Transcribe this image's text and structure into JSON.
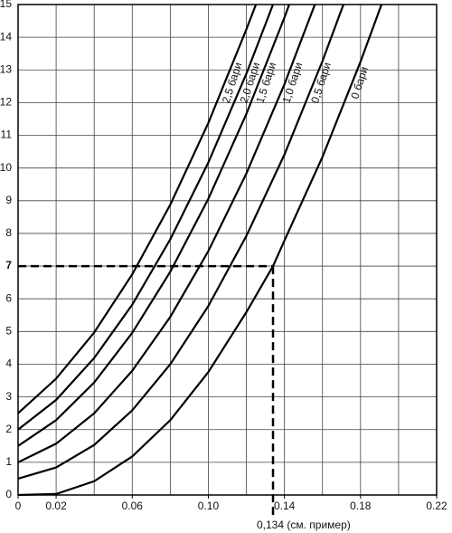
{
  "chart_data": {
    "type": "line",
    "xlim": [
      0,
      0.22
    ],
    "ylim": [
      0,
      15
    ],
    "xticks": [
      0,
      0.02,
      0.06,
      {
        "value": 0.1,
        "label": "0.10"
      },
      0.14,
      0.18,
      0.22
    ],
    "xgrid": [
      0.04,
      0.08,
      0.12,
      0.16,
      0.2
    ],
    "yticks": [
      0,
      1,
      2,
      3,
      4,
      5,
      6,
      7,
      8,
      9,
      10,
      11,
      12,
      13,
      14,
      15
    ],
    "grid": true,
    "series": [
      {
        "name": "2,5 бари",
        "color": "#000000",
        "x": [
          0,
          0.02,
          0.04,
          0.06,
          0.08,
          0.1,
          0.12,
          0.125
        ],
        "values": [
          2.5,
          3.56,
          4.97,
          6.75,
          8.88,
          11.38,
          14.24,
          15
        ]
      },
      {
        "name": "2,0 бари",
        "color": "#000000",
        "x": [
          0,
          0.02,
          0.04,
          0.06,
          0.08,
          0.1,
          0.12,
          0.134
        ],
        "values": [
          2,
          2.91,
          4.19,
          5.82,
          7.82,
          10.17,
          12.88,
          15
        ]
      },
      {
        "name": "1,5 бари",
        "color": "#000000",
        "x": [
          0,
          0.02,
          0.04,
          0.06,
          0.08,
          0.1,
          0.12,
          0.14,
          0.1425
        ],
        "values": [
          1.5,
          2.29,
          3.44,
          4.96,
          6.83,
          9.06,
          11.65,
          14.6,
          15
        ]
      },
      {
        "name": "1,0 бари",
        "color": "#000000",
        "x": [
          0,
          0.02,
          0.04,
          0.06,
          0.08,
          0.1,
          0.12,
          0.14,
          0.156
        ],
        "values": [
          1,
          1.57,
          2.5,
          3.8,
          5.45,
          7.46,
          9.83,
          12.56,
          15
        ]
      },
      {
        "name": "0,5 бари",
        "color": "#000000",
        "x": [
          0,
          0.02,
          0.04,
          0.06,
          0.08,
          0.1,
          0.12,
          0.14,
          0.16,
          0.171
        ],
        "values": [
          0.5,
          0.84,
          1.53,
          2.59,
          4.0,
          5.78,
          7.92,
          10.41,
          13.27,
          15
        ]
      },
      {
        "name": "0 бари",
        "color": "#000000",
        "x": [
          0,
          0.02,
          0.04,
          0.06,
          0.08,
          0.1,
          0.12,
          0.134,
          0.14,
          0.16,
          0.18,
          0.191
        ],
        "values": [
          0,
          0.03,
          0.42,
          1.18,
          2.29,
          3.76,
          5.59,
          7,
          7.78,
          10.34,
          13.25,
          15
        ]
      }
    ],
    "annotation": {
      "x": 0.134,
      "y": 7,
      "label": "0,134 (см. пример)"
    }
  }
}
